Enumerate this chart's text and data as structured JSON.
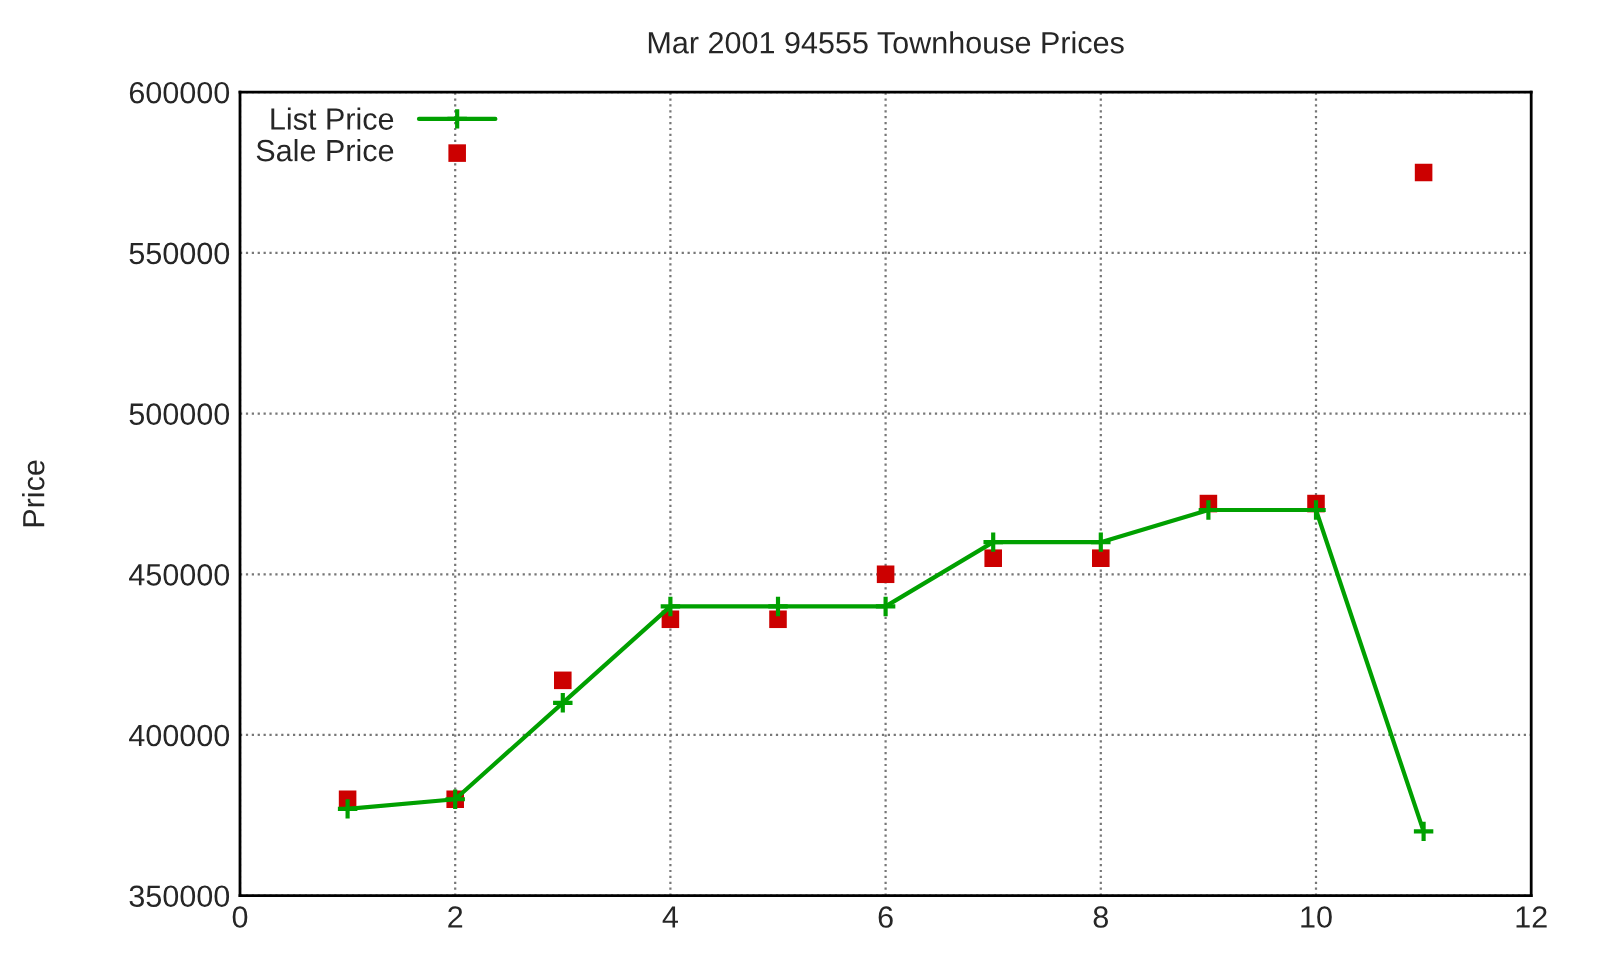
{
  "chart_data": {
    "type": "line",
    "title": "Mar 2001 94555 Townhouse Prices",
    "ylabel": "Price",
    "x": [
      1,
      2,
      3,
      4,
      5,
      6,
      7,
      8,
      9,
      10,
      11
    ],
    "series": [
      {
        "name": "List Price",
        "color": "#00a000",
        "marker": "cross",
        "line_style": "solid",
        "values": [
          377000,
          380000,
          410000,
          440000,
          440000,
          440000,
          460000,
          460000,
          470000,
          470000,
          370000
        ]
      },
      {
        "name": "Sale Price",
        "type": "scatter",
        "color": "#cc0000",
        "marker": "square",
        "values": [
          380000,
          380000,
          417000,
          436000,
          436000,
          450000,
          455000,
          455000,
          472000,
          472000,
          575000
        ]
      }
    ],
    "xlim": [
      0,
      12
    ],
    "xticks": [
      0,
      2,
      4,
      6,
      8,
      10,
      12
    ],
    "ylim": [
      350000,
      600000
    ],
    "yticks": [
      350000,
      400000,
      450000,
      500000,
      550000,
      600000
    ],
    "grid": true,
    "legend": "top left"
  }
}
